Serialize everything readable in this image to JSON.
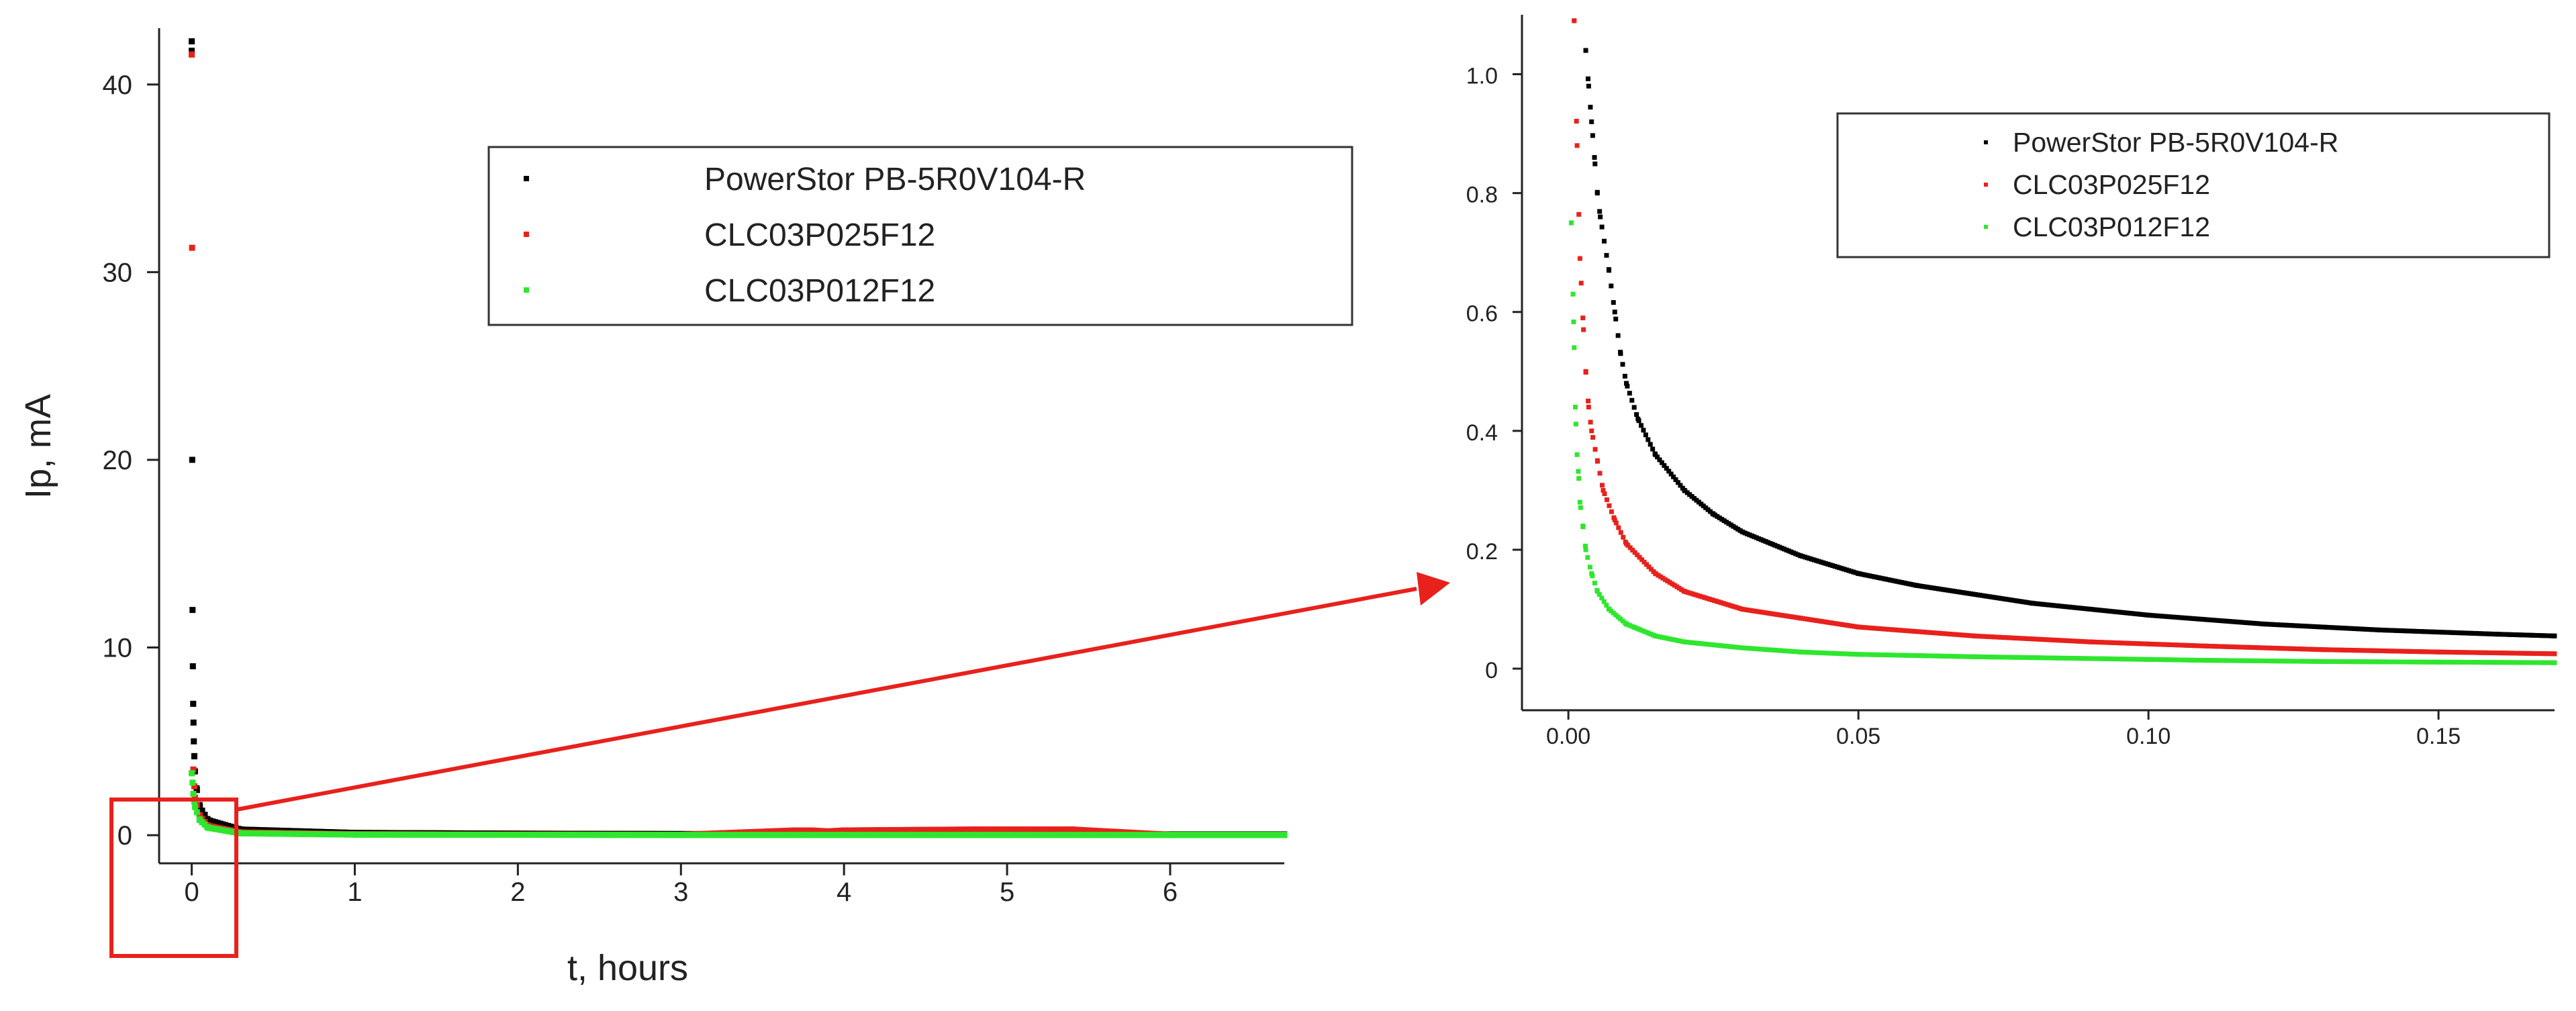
{
  "chart_data": [
    {
      "type": "scatter",
      "title": "",
      "xlabel": "t, hours",
      "ylabel": "Ip, mA",
      "xlim": [
        -0.2,
        6.7
      ],
      "ylim": [
        -1.5,
        43
      ],
      "xticks": [
        "0",
        "1",
        "2",
        "3",
        "4",
        "5",
        "6"
      ],
      "yticks": [
        "0",
        "10",
        "20",
        "30",
        "40"
      ],
      "grid": false,
      "legend_position": "top-right",
      "series": [
        {
          "name": "PowerStor PB-5R0V104-R",
          "color": "#000000",
          "points": [
            [
              0.0,
              42.3
            ],
            [
              0.0,
              41.8
            ],
            [
              0.003,
              20.0
            ],
            [
              0.005,
              12.0
            ],
            [
              0.007,
              9.0
            ],
            [
              0.009,
              7.0
            ],
            [
              0.011,
              6.0
            ],
            [
              0.013,
              5.0
            ],
            [
              0.016,
              4.2
            ],
            [
              0.02,
              3.4
            ],
            [
              0.03,
              2.5
            ],
            [
              0.05,
              1.5
            ],
            [
              0.1,
              0.8
            ],
            [
              0.3,
              0.3
            ],
            [
              1.0,
              0.12
            ],
            [
              2.0,
              0.08
            ],
            [
              3.0,
              0.06
            ],
            [
              4.0,
              0.05
            ],
            [
              5.0,
              0.05
            ],
            [
              6.0,
              0.04
            ],
            [
              6.7,
              0.04
            ]
          ]
        },
        {
          "name": "CLC03P025F12",
          "color": "#e8211c",
          "points": [
            [
              0.0,
              41.6
            ],
            [
              0.002,
              31.3
            ],
            [
              0.01,
              3.5
            ],
            [
              0.02,
              2.0
            ],
            [
              0.05,
              1.0
            ],
            [
              0.1,
              0.5
            ],
            [
              0.3,
              0.15
            ],
            [
              1.0,
              0.05
            ],
            [
              2.0,
              0.03
            ],
            [
              3.0,
              0.02
            ],
            [
              3.7,
              0.25
            ],
            [
              3.8,
              0.25
            ],
            [
              3.9,
              0.2
            ],
            [
              4.0,
              0.25
            ],
            [
              4.8,
              0.3
            ],
            [
              5.0,
              0.3
            ],
            [
              5.2,
              0.3
            ],
            [
              5.4,
              0.3
            ],
            [
              5.5,
              0.25
            ],
            [
              6.0,
              0.02
            ],
            [
              6.7,
              0.02
            ]
          ]
        },
        {
          "name": "CLC03P012F12",
          "color": "#2fe62f",
          "points": [
            [
              0.0,
              3.3
            ],
            [
              0.005,
              2.8
            ],
            [
              0.01,
              2.2
            ],
            [
              0.02,
              1.5
            ],
            [
              0.05,
              0.8
            ],
            [
              0.1,
              0.4
            ],
            [
              0.3,
              0.1
            ],
            [
              1.0,
              0.03
            ],
            [
              2.0,
              0.02
            ],
            [
              3.0,
              0.01
            ],
            [
              4.0,
              0.01
            ],
            [
              5.0,
              0.01
            ],
            [
              6.0,
              0.01
            ],
            [
              6.7,
              0.01
            ]
          ]
        }
      ]
    },
    {
      "type": "scatter",
      "title": "",
      "xlabel": "",
      "ylabel": "",
      "xlim": [
        -0.008,
        0.17
      ],
      "ylim": [
        -0.07,
        1.1
      ],
      "xticks": [
        "0.00",
        "0.05",
        "0.10",
        "0.15"
      ],
      "yticks": [
        "0",
        "0.2",
        "0.4",
        "0.6",
        "0.8",
        "1.0"
      ],
      "grid": false,
      "legend_position": "top-right",
      "series": [
        {
          "name": "PowerStor PB-5R0V104-R",
          "color": "#000000",
          "points": [
            [
              0.003,
              1.04
            ],
            [
              0.0035,
              0.98
            ],
            [
              0.004,
              0.92
            ],
            [
              0.0045,
              0.86
            ],
            [
              0.005,
              0.8
            ],
            [
              0.0055,
              0.76
            ],
            [
              0.007,
              0.67
            ],
            [
              0.008,
              0.6
            ],
            [
              0.009,
              0.53
            ],
            [
              0.01,
              0.48
            ],
            [
              0.012,
              0.42
            ],
            [
              0.015,
              0.36
            ],
            [
              0.02,
              0.3
            ],
            [
              0.025,
              0.26
            ],
            [
              0.03,
              0.23
            ],
            [
              0.04,
              0.19
            ],
            [
              0.05,
              0.16
            ],
            [
              0.06,
              0.14
            ],
            [
              0.08,
              0.11
            ],
            [
              0.1,
              0.09
            ],
            [
              0.12,
              0.075
            ],
            [
              0.14,
              0.065
            ],
            [
              0.16,
              0.058
            ],
            [
              0.17,
              0.055
            ]
          ]
        },
        {
          "name": "CLC03P025F12",
          "color": "#e8211c",
          "points": [
            [
              0.001,
              1.09
            ],
            [
              0.0015,
              0.88
            ],
            [
              0.002,
              0.69
            ],
            [
              0.0025,
              0.59
            ],
            [
              0.003,
              0.5
            ],
            [
              0.0035,
              0.44
            ],
            [
              0.004,
              0.4
            ],
            [
              0.005,
              0.35
            ],
            [
              0.006,
              0.3
            ],
            [
              0.008,
              0.25
            ],
            [
              0.01,
              0.21
            ],
            [
              0.015,
              0.16
            ],
            [
              0.02,
              0.13
            ],
            [
              0.03,
              0.1
            ],
            [
              0.04,
              0.085
            ],
            [
              0.05,
              0.07
            ],
            [
              0.07,
              0.055
            ],
            [
              0.09,
              0.045
            ],
            [
              0.11,
              0.038
            ],
            [
              0.13,
              0.032
            ],
            [
              0.15,
              0.028
            ],
            [
              0.17,
              0.025
            ]
          ]
        },
        {
          "name": "CLC03P012F12",
          "color": "#2fe62f",
          "points": [
            [
              0.0005,
              0.75
            ],
            [
              0.0008,
              0.63
            ],
            [
              0.001,
              0.54
            ],
            [
              0.0012,
              0.44
            ],
            [
              0.0015,
              0.36
            ],
            [
              0.0018,
              0.32
            ],
            [
              0.002,
              0.28
            ],
            [
              0.0025,
              0.24
            ],
            [
              0.003,
              0.2
            ],
            [
              0.004,
              0.16
            ],
            [
              0.005,
              0.13
            ],
            [
              0.007,
              0.1
            ],
            [
              0.01,
              0.075
            ],
            [
              0.015,
              0.055
            ],
            [
              0.02,
              0.045
            ],
            [
              0.03,
              0.035
            ],
            [
              0.04,
              0.028
            ],
            [
              0.05,
              0.024
            ],
            [
              0.07,
              0.02
            ],
            [
              0.09,
              0.017
            ],
            [
              0.11,
              0.014
            ],
            [
              0.13,
              0.012
            ],
            [
              0.15,
              0.011
            ],
            [
              0.17,
              0.01
            ]
          ]
        }
      ]
    }
  ],
  "annotation": {
    "highlight_color": "#e8211c",
    "zoom_region_x": [
      -0.2,
      0.25
    ],
    "zoom_region_y": [
      -1.5,
      1.8
    ]
  }
}
